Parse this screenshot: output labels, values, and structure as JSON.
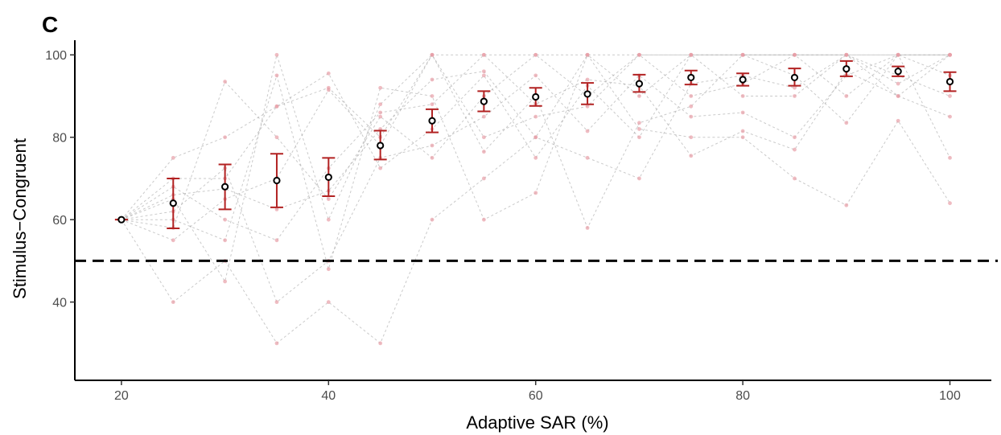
{
  "panel_label": "C",
  "chart_data": {
    "type": "scatter",
    "title": "",
    "xlabel": "Adaptive SAR (%)",
    "ylabel": "Stimulus−Congruent",
    "xlim": [
      15.5,
      104
    ],
    "ylim": [
      21,
      102
    ],
    "xticks": [
      20,
      40,
      60,
      80,
      100
    ],
    "yticks": [
      40,
      60,
      80,
      100
    ],
    "grid": false,
    "legend": "none",
    "reference_line": {
      "y": 50,
      "style": "dashed",
      "color": "#000000"
    },
    "colors": {
      "mean_point": "#000000",
      "error_bar": "#b22222",
      "subject_point": "#e8a0a8",
      "subject_line": "#9e9e9e"
    },
    "series": [
      {
        "role": "mean",
        "x": [
          20,
          25,
          30,
          35,
          40,
          45,
          50,
          55,
          60,
          65,
          70,
          75,
          80,
          85,
          90,
          95,
          100
        ],
        "y": [
          60,
          64,
          68,
          69.5,
          70.3,
          78,
          84,
          88.7,
          89.8,
          90.5,
          93,
          94.5,
          94,
          94.5,
          96.6,
          96,
          93.5
        ],
        "lower": [
          60,
          57.9,
          62.5,
          63,
          65.7,
          74.6,
          81.2,
          86.3,
          87.6,
          88,
          91,
          92.8,
          92.5,
          92.5,
          94.8,
          94.8,
          91.2
        ],
        "upper": [
          60,
          70,
          73.4,
          76,
          75,
          81.6,
          86.8,
          91.2,
          92,
          93.2,
          95.2,
          96.2,
          95.5,
          96.7,
          98.5,
          97.2,
          95.8
        ]
      },
      {
        "role": "subject",
        "x": [
          20,
          25,
          30,
          35,
          40,
          45,
          50,
          55,
          60,
          65,
          70,
          75,
          80,
          85,
          90,
          95,
          100
        ],
        "y": [
          60,
          75,
          80,
          87.5,
          92,
          80,
          100,
          100,
          100,
          90,
          100,
          100,
          100,
          100,
          100,
          100,
          100
        ]
      },
      {
        "role": "subject",
        "x": [
          20,
          25,
          30,
          35,
          40,
          45,
          50,
          55,
          60,
          65,
          70,
          75,
          80,
          85,
          90,
          95,
          100
        ],
        "y": [
          60,
          40,
          50,
          30,
          40,
          30,
          60,
          70,
          80,
          100,
          100,
          100,
          100,
          100,
          100,
          100,
          100
        ]
      },
      {
        "role": "subject",
        "x": [
          20,
          25,
          30,
          35,
          40,
          45,
          50,
          55,
          60,
          65,
          70,
          75,
          80,
          85,
          90,
          95,
          100
        ],
        "y": [
          60,
          58,
          93.5,
          80,
          65,
          85,
          75,
          90,
          100,
          100,
          90,
          100,
          100,
          100,
          90,
          100,
          100
        ]
      },
      {
        "role": "subject",
        "x": [
          20,
          25,
          30,
          35,
          40,
          45,
          50,
          55,
          60,
          65,
          70,
          75,
          80,
          85,
          90,
          95,
          100
        ],
        "y": [
          60,
          65,
          45,
          100,
          60,
          88,
          100,
          80,
          85,
          87.5,
          100,
          90,
          93,
          100,
          100,
          90,
          85
        ]
      },
      {
        "role": "subject",
        "x": [
          20,
          25,
          30,
          35,
          40,
          45,
          50,
          55,
          60,
          65,
          70,
          75,
          80,
          85,
          90,
          95,
          100
        ],
        "y": [
          60,
          60,
          55,
          95,
          48,
          92,
          90,
          60,
          66.5,
          100,
          82,
          80,
          80,
          70,
          63.5,
          84,
          64
        ]
      },
      {
        "role": "subject",
        "x": [
          20,
          25,
          30,
          35,
          40,
          45,
          50,
          55,
          60,
          65,
          70,
          75,
          80,
          85,
          90,
          95,
          100
        ],
        "y": [
          60,
          70,
          70,
          87.5,
          95.5,
          72.5,
          82,
          95,
          75,
          92.5,
          80,
          100,
          90,
          90,
          100,
          95,
          90
        ]
      },
      {
        "role": "subject",
        "x": [
          20,
          25,
          30,
          35,
          40,
          45,
          50,
          55,
          60,
          65,
          70,
          75,
          80,
          85,
          90,
          95,
          100
        ],
        "y": [
          60,
          55,
          65,
          70,
          91.5,
          78,
          100,
          76.5,
          90,
          58,
          83.5,
          87.5,
          100,
          95,
          83.5,
          100,
          95
        ]
      },
      {
        "role": "subject",
        "x": [
          20,
          25,
          30,
          35,
          40,
          45,
          50,
          55,
          60,
          65,
          70,
          75,
          80,
          85,
          90,
          95,
          100
        ],
        "y": [
          60,
          62,
          72.5,
          40,
          50,
          75,
          78,
          85,
          95,
          81.5,
          95,
          85,
          86,
          80,
          95,
          100,
          75
        ]
      },
      {
        "role": "subject",
        "x": [
          20,
          25,
          30,
          35,
          40,
          45,
          50,
          55,
          60,
          65,
          70,
          75,
          80,
          85,
          90,
          95,
          100
        ],
        "y": [
          60,
          68,
          60,
          55,
          72.5,
          86,
          88,
          100,
          88,
          94,
          92.5,
          75.5,
          81.5,
          77,
          96,
          90,
          100
        ]
      },
      {
        "role": "subject",
        "x": [
          20,
          25,
          30,
          35,
          40,
          45,
          50,
          55,
          60,
          65,
          70,
          75,
          80,
          85,
          90,
          95,
          100
        ],
        "y": [
          60,
          66,
          67.5,
          62.5,
          67,
          82,
          94,
          96,
          80,
          75,
          70,
          93,
          95,
          92,
          100,
          93,
          100
        ]
      }
    ]
  }
}
